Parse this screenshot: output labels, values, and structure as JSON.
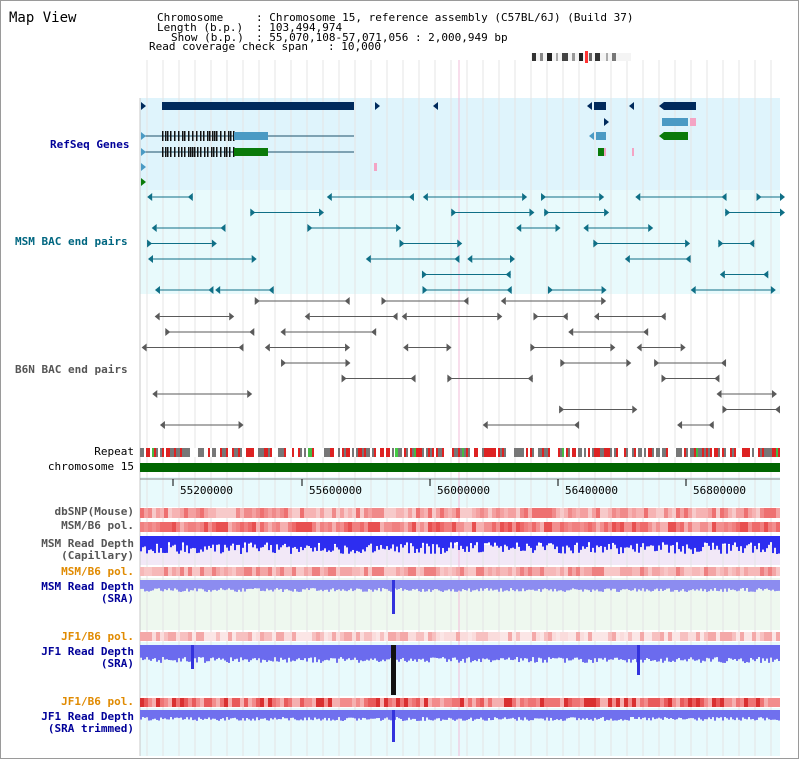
{
  "title": "Map View",
  "info": {
    "chromosome_label": "Chromosome",
    "chromosome_value": ": Chromosome 15, reference assembly (C57BL/6J) (Build 37)",
    "length_label": "Length (b.p.)",
    "length_value": ": 103,494,974",
    "show_label": "Show (b.p.)",
    "show_value": ": 55,070,108-57,071,056 : 2,000,949 bp",
    "coverage_label": "Read coverage check span",
    "coverage_value": ": 10,000"
  },
  "tracks": {
    "refseq": "RefSeq Genes",
    "msm_bac": "MSM BAC end pairs",
    "b6n_bac": "B6N BAC end pairs",
    "repeat": "Repeat",
    "chromosome": "chromosome 15",
    "dbsnp": "dbSNP(Mouse)",
    "msm_b6_pol": "MSM/B6 pol.",
    "msm_depth_cap_1": "MSM Read Depth",
    "msm_depth_cap_2": "(Capillary)",
    "msm_b6_pol_2": "MSM/B6 pol.",
    "msm_depth_sra_1": "MSM Read Depth",
    "msm_depth_sra_2": "(SRA)",
    "jf1_b6_pol": "JF1/B6 pol.",
    "jf1_depth_sra_1": "JF1 Read Depth",
    "jf1_depth_sra_2": "(SRA)",
    "jf1_b6_pol_2": "JF1/B6 pol.",
    "jf1_depth_trim_1": "JF1 Read Depth",
    "jf1_depth_trim_2": "(SRA trimmed)"
  },
  "axis": {
    "ticks": [
      "55200000",
      "55600000",
      "56000000",
      "56400000",
      "56800000"
    ]
  },
  "colors": {
    "refseq_label": "#000099",
    "msm_label": "#006680",
    "b6n_label": "#555555",
    "orange_label": "#e08a00",
    "blue_label": "#000099",
    "refseq_bg": "#dff4fc",
    "msm_bg": "#e8fafc",
    "chrom_green": "#006600"
  }
}
